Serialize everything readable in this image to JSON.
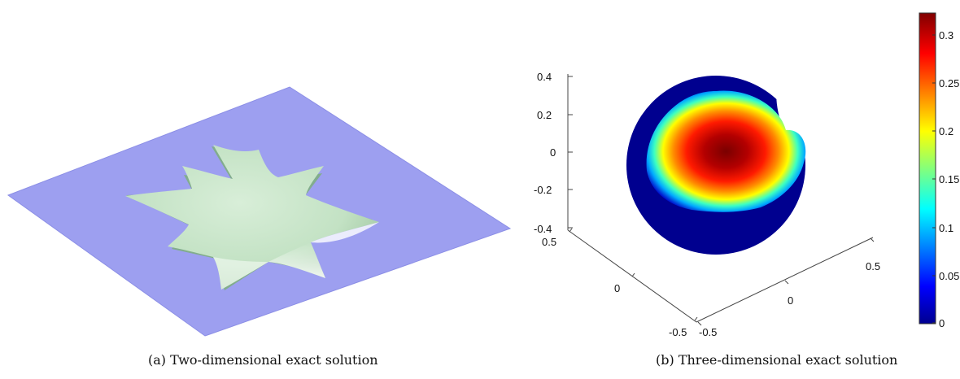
{
  "figure": {
    "captions": {
      "a": "(a) Two-dimensional exact solution",
      "b": "(b) Three-dimensional exact solution"
    },
    "colors": {
      "plane": "#9d9ff0",
      "surface": "#c9e6c9",
      "surface_shadow": "#8fb690",
      "colormap": [
        "#00008f",
        "#0000ff",
        "#00ffff",
        "#ffff00",
        "#ff0000",
        "#800000"
      ]
    }
  },
  "chart_data": [
    {
      "type": "surface",
      "panel": "a",
      "description_shape": "seven-point star bump over flat plane"
    },
    {
      "type": "heatmap",
      "panel": "b",
      "z_ticks": [
        "0.4",
        "0.2",
        "0",
        "-0.2",
        "-0.4"
      ],
      "x_ticks": [
        "0.5",
        "0",
        "-0.5"
      ],
      "y_ticks": [
        "-0.5",
        "0",
        "0.5"
      ],
      "colorbar": {
        "ticks": [
          "0.3",
          "0.25",
          "0.2",
          "0.15",
          "0.1",
          "0.05",
          "0"
        ],
        "range": [
          0,
          0.32
        ]
      }
    }
  ]
}
